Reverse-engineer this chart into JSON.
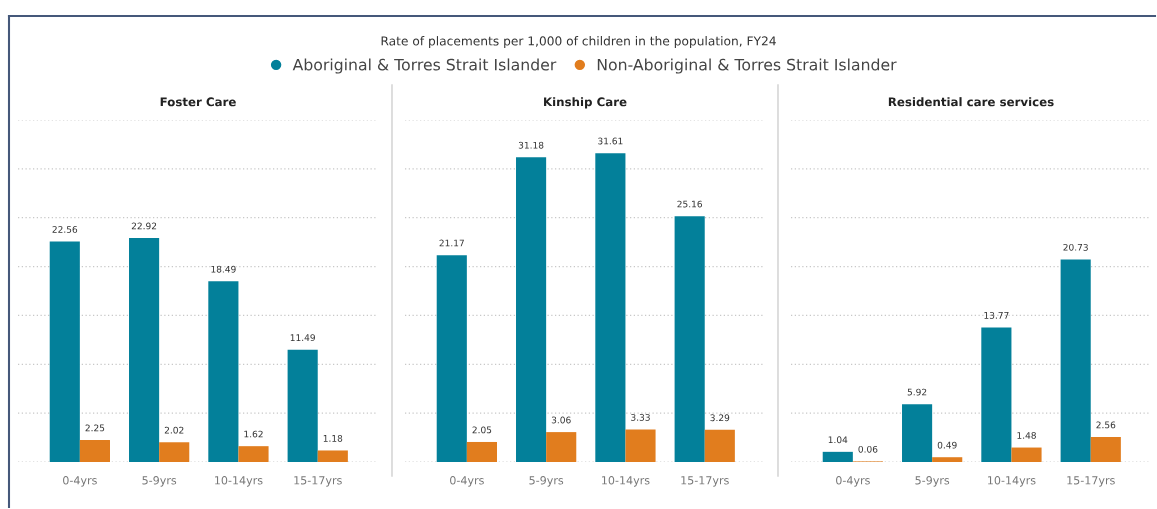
{
  "chart_data": [
    {
      "type": "bar",
      "title": "Foster Care",
      "annotations": [
        "Rate of placements per 1,000 of children in the population, FY24"
      ],
      "categories": [
        "0-4yrs",
        "5-9yrs",
        "10-14yrs",
        "15-17yrs"
      ],
      "series": [
        {
          "name": "Aboriginal & Torres Strait Islander",
          "color": "#03809a",
          "values": [
            22.56,
            22.92,
            18.49,
            11.49
          ]
        },
        {
          "name": "Non-Aboriginal & Torres Strait Islander",
          "color": "#e17d1e",
          "values": [
            2.25,
            2.02,
            1.62,
            1.18
          ]
        }
      ],
      "ylim": [
        0,
        35
      ],
      "yticks": [
        {
          "value": 0,
          "label": null
        },
        {
          "value": 5,
          "label": null
        },
        {
          "value": 10,
          "label": null
        },
        {
          "value": 15,
          "label": null
        },
        {
          "value": 20,
          "label": null
        },
        {
          "value": 25,
          "label": null
        },
        {
          "value": 30,
          "label": null
        },
        {
          "value": 35,
          "label": null
        }
      ],
      "grid": "y",
      "tick_labels": "x",
      "data_labels": true,
      "legend": "top"
    },
    {
      "type": "bar",
      "title": "Kinship Care",
      "categories": [
        "0-4yrs",
        "5-9yrs",
        "10-14yrs",
        "15-17yrs"
      ],
      "series": [
        {
          "name": "Aboriginal & Torres Strait Islander",
          "color": "#03809a",
          "values": [
            21.17,
            31.18,
            31.61,
            25.16
          ]
        },
        {
          "name": "Non-Aboriginal & Torres Strait Islander",
          "color": "#e17d1e",
          "values": [
            2.05,
            3.06,
            3.33,
            3.29
          ]
        }
      ],
      "ylim": [
        0,
        35
      ],
      "yticks": [
        {
          "value": 0,
          "label": null
        },
        {
          "value": 5,
          "label": null
        },
        {
          "value": 10,
          "label": null
        },
        {
          "value": 15,
          "label": null
        },
        {
          "value": 20,
          "label": null
        },
        {
          "value": 25,
          "label": null
        },
        {
          "value": 30,
          "label": null
        },
        {
          "value": 35,
          "label": null
        }
      ],
      "grid": "y",
      "tick_labels": "x",
      "data_labels": true
    },
    {
      "type": "bar",
      "title": "Residential care services",
      "categories": [
        "0-4yrs",
        "5-9yrs",
        "10-14yrs",
        "15-17yrs"
      ],
      "series": [
        {
          "name": "Aboriginal & Torres Strait Islander",
          "color": "#03809a",
          "values": [
            1.04,
            5.92,
            13.77,
            20.73
          ]
        },
        {
          "name": "Non-Aboriginal & Torres Strait Islander",
          "color": "#e17d1e",
          "values": [
            0.06,
            0.49,
            1.48,
            2.56
          ]
        }
      ],
      "ylim": [
        0,
        35
      ],
      "yticks": [
        {
          "value": 0,
          "label": null
        },
        {
          "value": 5,
          "label": null
        },
        {
          "value": 10,
          "label": null
        },
        {
          "value": 15,
          "label": null
        },
        {
          "value": 20,
          "label": null
        },
        {
          "value": 25,
          "label": null
        },
        {
          "value": 30,
          "label": null
        },
        {
          "value": 35,
          "label": null
        }
      ],
      "grid": "y",
      "tick_labels": "x",
      "data_labels": true
    }
  ]
}
